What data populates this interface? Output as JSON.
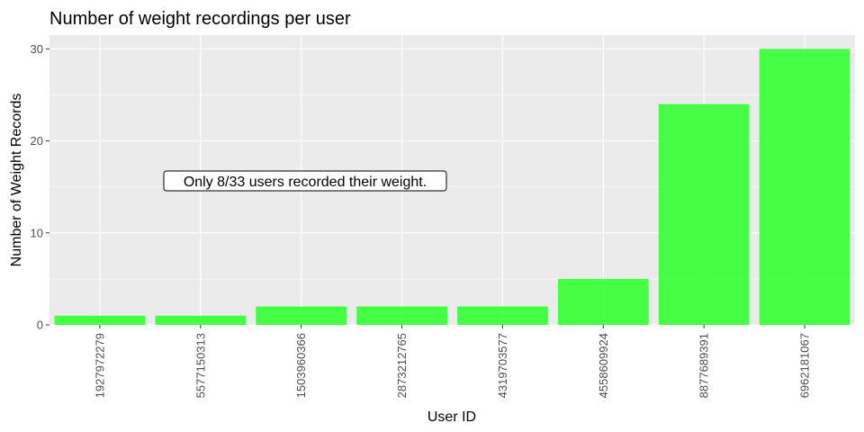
{
  "chart_data": {
    "type": "bar",
    "title": "Number of weight recordings per user",
    "xlabel": "User ID",
    "ylabel": "Number of Weight Records",
    "categories": [
      "1927972279",
      "5577150313",
      "1503960366",
      "2873212765",
      "4319703577",
      "4558609924",
      "8877689391",
      "6962181067"
    ],
    "values": [
      1,
      1,
      2,
      2,
      2,
      5,
      24,
      30
    ],
    "ylim": [
      0,
      31.5
    ],
    "yticks": [
      0,
      10,
      20,
      30
    ],
    "grid": true,
    "annotation": "Only 8/33 users recorded their weight.",
    "colors": {
      "bar": "#33ff33",
      "panel": "#ebebeb",
      "grid": "#ffffff"
    }
  }
}
